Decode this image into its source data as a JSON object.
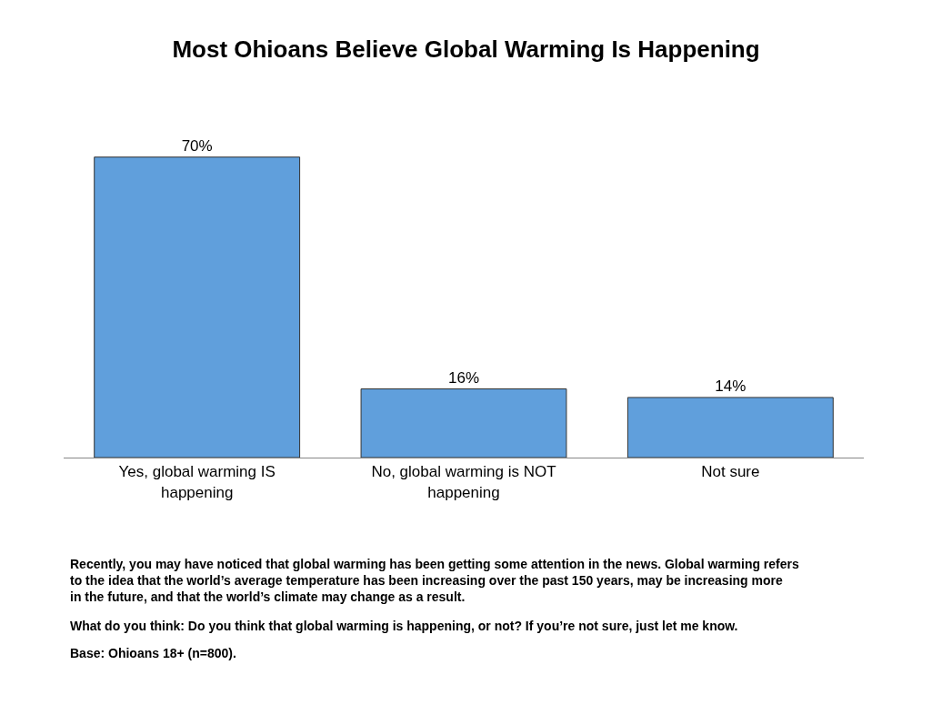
{
  "chart_data": {
    "type": "bar",
    "title": "Most Ohioans Believe Global Warming Is Happening",
    "categories": [
      "Yes, global warming IS happening",
      "No, global warming is NOT happening",
      "Not sure"
    ],
    "values": [
      70,
      16,
      14
    ],
    "value_labels": [
      "70%",
      "16%",
      "14%"
    ],
    "color": "#609fdc",
    "annotations": [
      "Recently, you may have noticed that global warming has been getting some attention in the news. Global warming refers to the idea that the world’s average temperature has been increasing over the past 150 years, may be increasing more in the future, and that the world’s climate may change as a result.",
      "What do you think: Do you think that global warming is happening, or not? If you’re not sure, just let me know.",
      "Base: Ohioans 18+ (n=800)."
    ]
  }
}
